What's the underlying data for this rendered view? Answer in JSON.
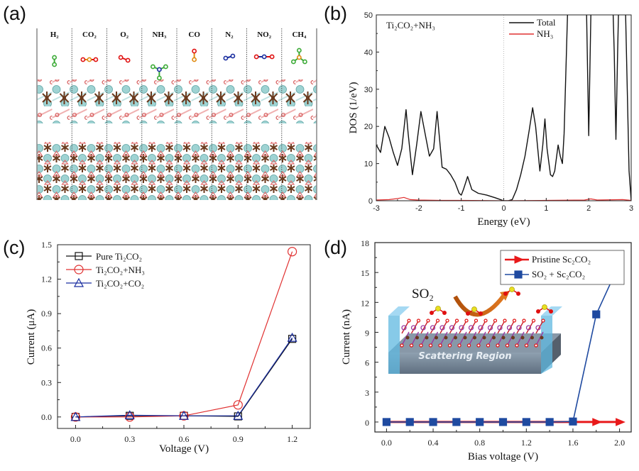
{
  "panels": {
    "a": {
      "label": "(a)",
      "molecules": [
        "H₂",
        "CO₂",
        "O₂",
        "NH₃",
        "CO",
        "N₂",
        "NO₂",
        "CH₄"
      ]
    },
    "b": {
      "label": "(b)"
    },
    "c": {
      "label": "(c)"
    },
    "d": {
      "label": "(d)",
      "inset": {
        "molecule_label": "SO₂",
        "region_label": "Scattering Region"
      }
    }
  },
  "colors": {
    "black": "#111111",
    "red": "#e03030",
    "blue": "#1a2ea0",
    "d_red": "#e8191a",
    "d_blue": "#1f4aa0",
    "ti": "#9fd3d3",
    "c_atom": "#6b3a1e",
    "o_atom": "#d86060"
  },
  "chart_data": [
    {
      "id": "b",
      "type": "line",
      "annotation": "Ti₂CO₂+NH₃",
      "xlabel": "Energy (eV)",
      "ylabel": "DOS (1/eV)",
      "xlim": [
        -3,
        3
      ],
      "ylim": [
        0,
        50
      ],
      "xticks": [
        -3,
        -2,
        -1,
        0,
        1,
        2,
        3
      ],
      "yticks": [
        0,
        10,
        20,
        30,
        40,
        50
      ],
      "fermi_line": 0,
      "legend": "top-right",
      "series": [
        {
          "name": "Total",
          "color": "#111111",
          "x": [
            -3.0,
            -2.9,
            -2.8,
            -2.7,
            -2.6,
            -2.5,
            -2.4,
            -2.3,
            -2.25,
            -2.15,
            -2.05,
            -1.95,
            -1.85,
            -1.75,
            -1.65,
            -1.57,
            -1.45,
            -1.35,
            -1.25,
            -1.15,
            -1.05,
            -1.0,
            -0.95,
            -0.85,
            -0.75,
            -0.6,
            -0.4,
            -0.2,
            0.0,
            0.1,
            0.2,
            0.3,
            0.4,
            0.5,
            0.6,
            0.68,
            0.75,
            0.85,
            0.92,
            0.97,
            1.02,
            1.1,
            1.15,
            1.2,
            1.28,
            1.33,
            1.38,
            1.42,
            1.45,
            1.5,
            1.55,
            1.85,
            1.95,
            2.0,
            2.05,
            2.1,
            2.2,
            2.55,
            2.6,
            2.64,
            2.68,
            2.72,
            2.85,
            2.95,
            3.0
          ],
          "y": [
            15,
            13,
            20,
            17,
            13,
            9.5,
            14,
            24.5,
            18,
            7,
            15,
            24,
            18,
            12,
            14,
            24,
            9,
            8.5,
            7,
            5,
            2,
            1.5,
            3,
            6.5,
            3,
            2,
            1.5,
            0.8,
            0,
            0,
            0.3,
            3,
            7,
            12,
            19,
            25,
            20,
            8,
            15,
            22,
            14,
            7,
            6.5,
            8,
            15,
            12,
            10,
            18,
            30,
            50,
            60,
            60,
            50,
            17.5,
            50,
            60,
            60,
            60,
            40,
            16.5,
            40,
            60,
            60,
            8,
            0
          ]
        },
        {
          "name": "NH₃",
          "color": "#e03030",
          "x": [
            -3.0,
            -2.7,
            -2.5,
            -2.35,
            -2.2,
            -2.0,
            -1.5,
            -1.0,
            0.0,
            1.0,
            1.9,
            2.05,
            2.2,
            2.8,
            3.0
          ],
          "y": [
            0.2,
            0.3,
            0.6,
            0.9,
            0.3,
            0.2,
            0.1,
            0.1,
            0,
            0.1,
            0.2,
            0.5,
            0.2,
            0.3,
            0.1
          ]
        }
      ]
    },
    {
      "id": "c",
      "type": "line",
      "xlabel": "Voltage (V)",
      "ylabel": "Current (μA)",
      "xlim": [
        -0.1,
        1.3
      ],
      "ylim": [
        -0.1,
        1.5
      ],
      "xticks": [
        0.0,
        0.3,
        0.6,
        0.9,
        1.2
      ],
      "yticks": [
        0.0,
        0.3,
        0.6,
        0.9,
        1.2,
        1.5
      ],
      "legend": "top-left",
      "x": [
        0.0,
        0.3,
        0.6,
        0.9,
        1.2
      ],
      "series": [
        {
          "name": "Pure Ti₂CO₂",
          "marker": "square",
          "color": "#111111",
          "values": [
            0.0,
            0.01,
            0.01,
            0.005,
            0.68
          ]
        },
        {
          "name": "Ti₂CO₂+NH₃",
          "marker": "circle",
          "color": "#e03030",
          "values": [
            0.0,
            0.0,
            0.01,
            0.105,
            1.44
          ]
        },
        {
          "name": "Ti₂CO₂+CO₂",
          "marker": "triangle",
          "color": "#1a2ea0",
          "values": [
            0.0,
            0.015,
            0.01,
            0.01,
            0.69
          ]
        }
      ]
    },
    {
      "id": "d",
      "type": "line",
      "xlabel": "Bias voltage (V)",
      "ylabel": "Current (nA)",
      "xlim": [
        -0.1,
        2.1
      ],
      "ylim": [
        -1,
        18
      ],
      "xticks": [
        0.0,
        0.4,
        0.8,
        1.2,
        1.6,
        2.0
      ],
      "yticks": [
        0,
        3,
        6,
        9,
        12,
        15,
        18
      ],
      "legend": "top-right",
      "x": [
        0.0,
        0.2,
        0.4,
        0.6,
        0.8,
        1.0,
        1.2,
        1.4,
        1.6,
        1.8,
        2.0
      ],
      "series": [
        {
          "name": "Pristine Sc₂CO₂",
          "marker": "triangle-right",
          "color": "#e8191a",
          "values": [
            0,
            0,
            0,
            0,
            0,
            0,
            0,
            0,
            0,
            0,
            0
          ]
        },
        {
          "name": "SO₂ + Sc₂CO₂",
          "marker": "square",
          "color": "#1f4aa0",
          "values": [
            0,
            0,
            0,
            0,
            0,
            0,
            0,
            0,
            0.05,
            10.8,
            15.9
          ]
        }
      ]
    }
  ]
}
